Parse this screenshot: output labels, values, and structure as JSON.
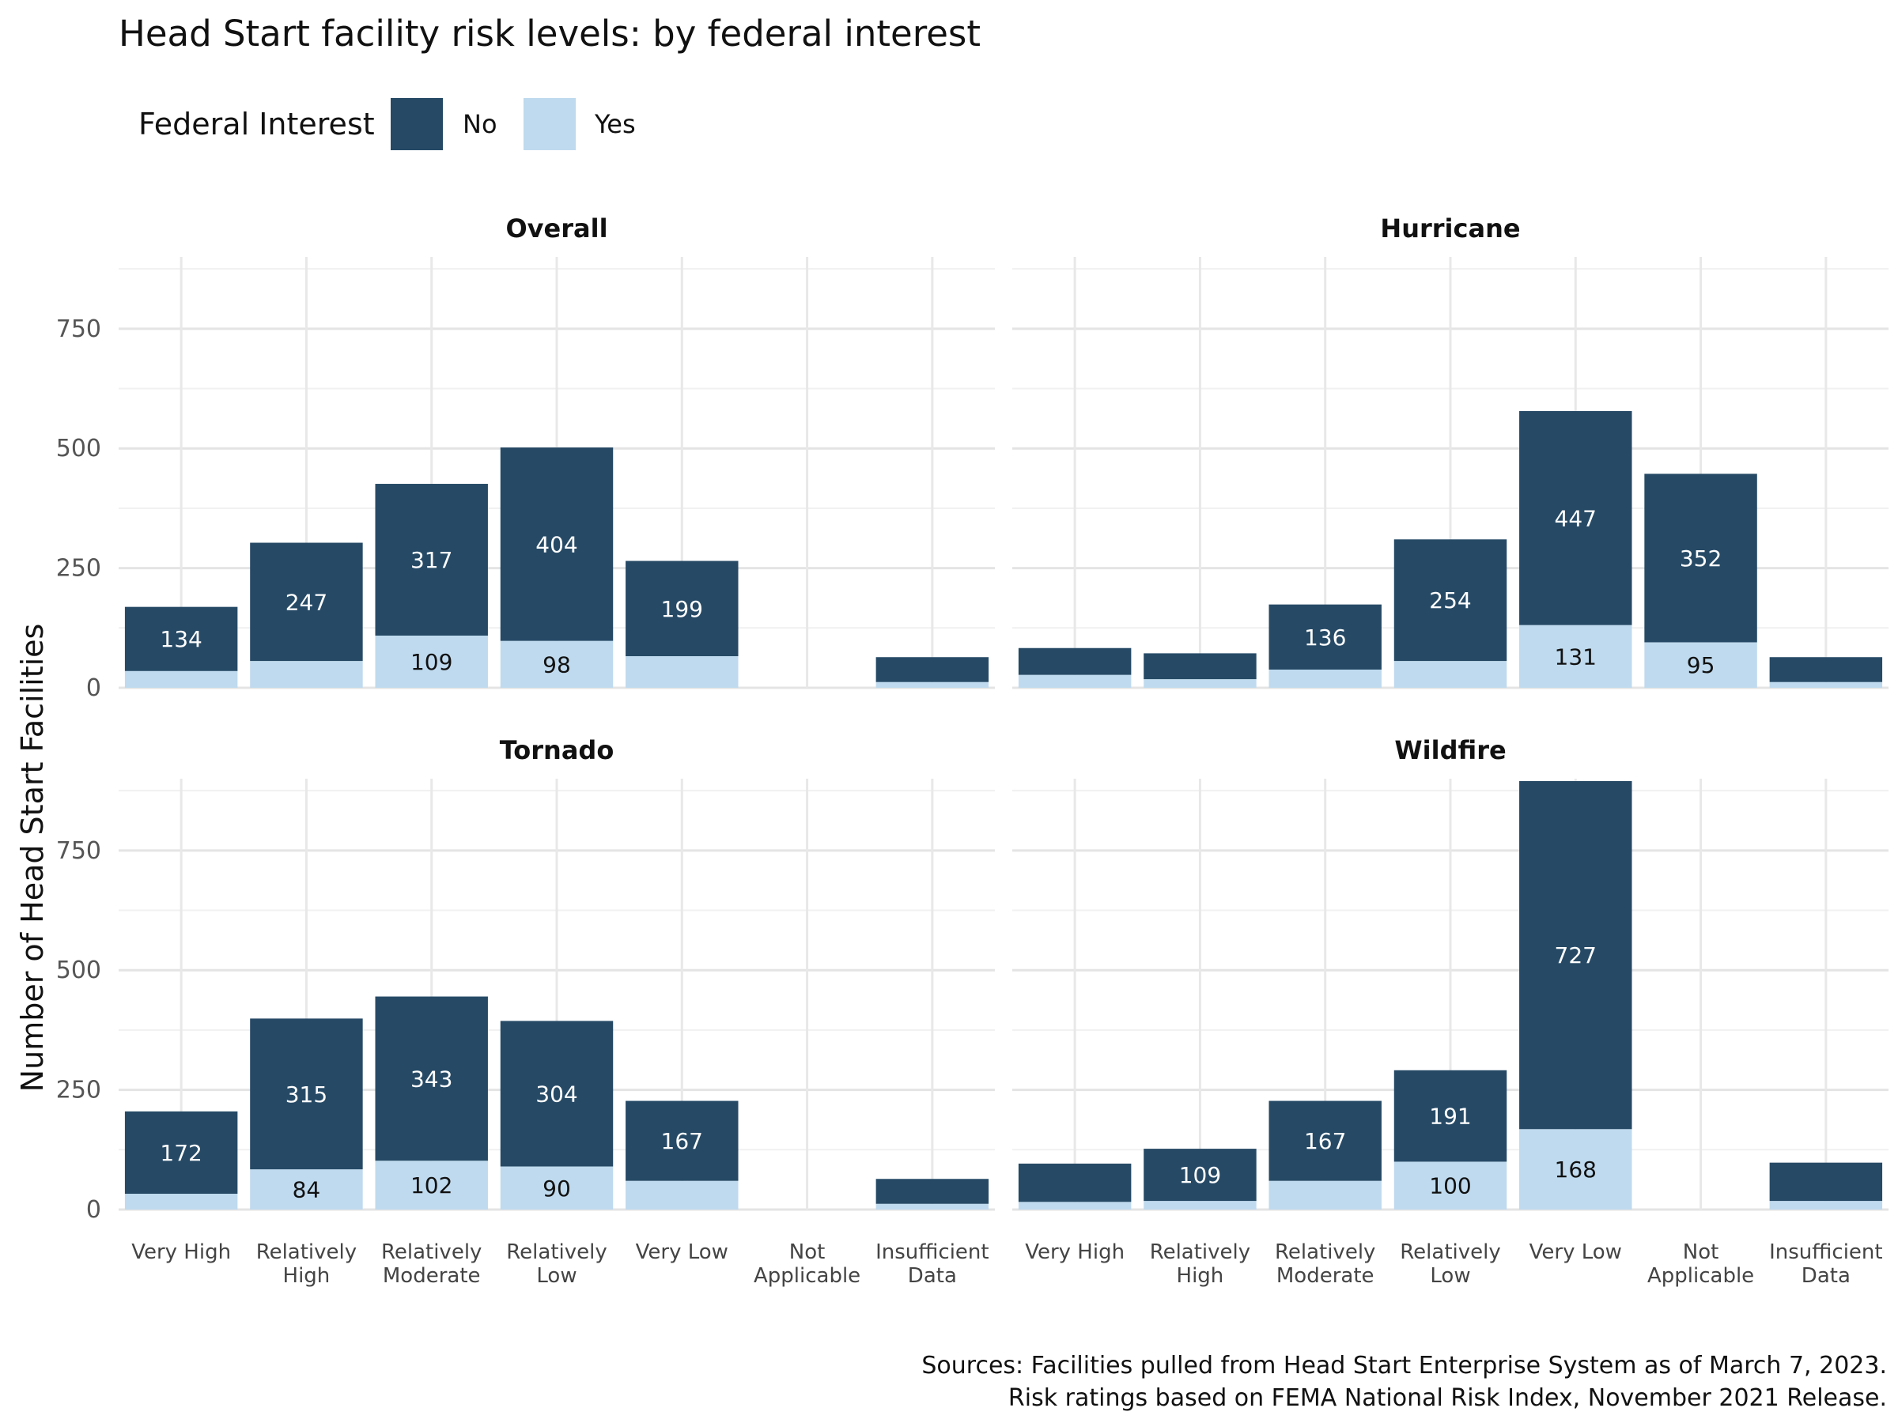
{
  "chart_data": {
    "type": "bar",
    "stacked": true,
    "title": "Head Start facility risk levels: by federal interest",
    "ylabel": "Number of Head Start Facilities",
    "xlabel": "",
    "ylim": [
      0,
      900
    ],
    "yticks": [
      0,
      250,
      500,
      750
    ],
    "grid": true,
    "legend": {
      "title": "Federal Interest",
      "position": "top-left",
      "entries": [
        "No",
        "Yes"
      ]
    },
    "colors": {
      "No": "#264a66",
      "Yes": "#bfdaee"
    },
    "categories": [
      "Very High",
      "Relatively High",
      "Relatively Moderate",
      "Relatively Low",
      "Very Low",
      "Not Applicable",
      "Insufficient Data"
    ],
    "category_lines": [
      [
        "Very High"
      ],
      [
        "Relatively",
        "High"
      ],
      [
        "Relatively",
        "Moderate"
      ],
      [
        "Relatively",
        "Low"
      ],
      [
        "Very Low"
      ],
      [
        "Not",
        "Applicable"
      ],
      [
        "Insufficient",
        "Data"
      ]
    ],
    "panels": [
      {
        "name": "Overall",
        "series": [
          {
            "name": "Yes",
            "values": [
              35,
              56,
              109,
              98,
              66,
              0,
              12
            ]
          },
          {
            "name": "No",
            "values": [
              134,
              247,
              317,
              404,
              199,
              0,
              52
            ]
          }
        ],
        "labels": {
          "Yes": [
            null,
            null,
            "109",
            "98",
            null,
            null,
            null
          ],
          "No": [
            "134",
            "247",
            "317",
            "404",
            "199",
            null,
            null
          ]
        }
      },
      {
        "name": "Hurricane",
        "series": [
          {
            "name": "Yes",
            "values": [
              27,
              18,
              38,
              56,
              131,
              95,
              12
            ]
          },
          {
            "name": "No",
            "values": [
              56,
              54,
              136,
              254,
              447,
              352,
              52
            ]
          }
        ],
        "labels": {
          "Yes": [
            null,
            null,
            null,
            null,
            "131",
            "95",
            null
          ],
          "No": [
            null,
            null,
            "136",
            "254",
            "447",
            "352",
            null
          ]
        }
      },
      {
        "name": "Tornado",
        "series": [
          {
            "name": "Yes",
            "values": [
              33,
              84,
              102,
              90,
              60,
              0,
              12
            ]
          },
          {
            "name": "No",
            "values": [
              172,
              315,
              343,
              304,
              167,
              0,
              52
            ]
          }
        ],
        "labels": {
          "Yes": [
            null,
            "84",
            "102",
            "90",
            null,
            null,
            null
          ],
          "No": [
            "172",
            "315",
            "343",
            "304",
            "167",
            null,
            null
          ]
        }
      },
      {
        "name": "Wildfire",
        "series": [
          {
            "name": "Yes",
            "values": [
              16,
              18,
              60,
              100,
              168,
              0,
              18
            ]
          },
          {
            "name": "No",
            "values": [
              80,
              109,
              167,
              191,
              727,
              0,
              80
            ]
          }
        ],
        "labels": {
          "Yes": [
            null,
            null,
            null,
            "100",
            "168",
            null,
            null
          ],
          "No": [
            null,
            "109",
            "167",
            "191",
            "727",
            null,
            null
          ]
        }
      }
    ]
  },
  "caption": {
    "line1": "Sources: Facilities pulled from Head Start Enterprise System as of March 7, 2023.",
    "line2": "Risk ratings based on FEMA National Risk Index, November 2021 Release."
  }
}
